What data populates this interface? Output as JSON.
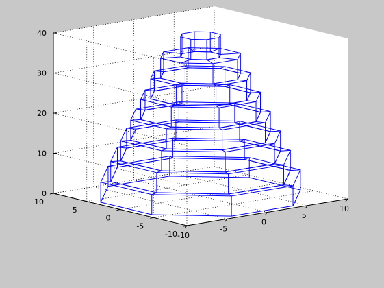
{
  "chart_data": {
    "type": "3d-wireframe",
    "title": "",
    "xlabel": "",
    "ylabel": "",
    "zlabel": "",
    "xlim": [
      -10,
      10
    ],
    "ylim": [
      -10,
      10
    ],
    "zlim": [
      0,
      40
    ],
    "x_ticks": [
      "-10",
      "-5",
      "0",
      "5",
      "10"
    ],
    "y_ticks": [
      "-10",
      "-5",
      "0",
      "5",
      "10"
    ],
    "z_ticks": [
      "0",
      "10",
      "20",
      "30",
      "40"
    ],
    "grid": true,
    "box": "on",
    "surface": {
      "shape": "stacked octagonal prisms (staircase cone)",
      "sides": 8,
      "line_color": "#0000ff",
      "tiers": [
        {
          "radius": 10,
          "z_bottom": 0,
          "z_top": 5
        },
        {
          "radius": 9,
          "z_bottom": 5,
          "z_top": 10
        },
        {
          "radius": 8,
          "z_bottom": 10,
          "z_top": 15
        },
        {
          "radius": 7,
          "z_bottom": 15,
          "z_top": 20
        },
        {
          "radius": 6,
          "z_bottom": 20,
          "z_top": 25
        },
        {
          "radius": 5,
          "z_bottom": 25,
          "z_top": 30
        },
        {
          "radius": 4,
          "z_bottom": 30,
          "z_top": 35
        },
        {
          "radius": 2,
          "z_bottom": 35,
          "z_top": 40
        }
      ]
    }
  },
  "colors": {
    "figure_bg": "#c8c8c8",
    "axes_bg": "#ffffff",
    "wire": "#0000ff",
    "axis": "#000000"
  }
}
